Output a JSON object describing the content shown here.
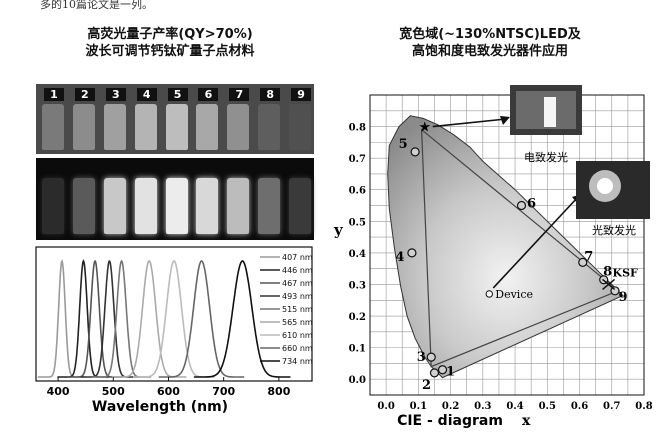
{
  "header_partial": "多的10篇论文是一列。",
  "left": {
    "title_line1": "高荧光量子产率(QY>70%)",
    "title_line2": "波长可调节钙钛矿量子点材料",
    "vials": [
      {
        "label": "1",
        "day": "#7a7a7a",
        "uv": "#2b2b2b"
      },
      {
        "label": "2",
        "day": "#8c8c8c",
        "uv": "#5a5a5a"
      },
      {
        "label": "3",
        "day": "#a0a0a0",
        "uv": "#c8c8c8"
      },
      {
        "label": "4",
        "day": "#b4b4b4",
        "uv": "#e2e2e2"
      },
      {
        "label": "5",
        "day": "#bdbdbd",
        "uv": "#ececec"
      },
      {
        "label": "6",
        "day": "#a8a8a8",
        "uv": "#d8d8d8"
      },
      {
        "label": "7",
        "day": "#909090",
        "uv": "#bcbcbc"
      },
      {
        "label": "8",
        "day": "#5e5e5e",
        "uv": "#6e6e6e"
      },
      {
        "label": "9",
        "day": "#505050",
        "uv": "#3a3a3a"
      }
    ]
  },
  "chart_data": [
    {
      "type": "line",
      "xlabel": "Wavelength (nm)",
      "xlim": [
        360,
        860
      ],
      "xticks": [
        400,
        500,
        600,
        700,
        800
      ],
      "series": [
        {
          "name": "407 nm",
          "peak": 407,
          "fwhm": 14,
          "color": "#9a9a9a"
        },
        {
          "name": "446 nm",
          "peak": 446,
          "fwhm": 16,
          "color": "#222222"
        },
        {
          "name": "467 nm",
          "peak": 467,
          "fwhm": 18,
          "color": "#555555"
        },
        {
          "name": "493 nm",
          "peak": 493,
          "fwhm": 19,
          "color": "#333333"
        },
        {
          "name": "515 nm",
          "peak": 515,
          "fwhm": 20,
          "color": "#777777"
        },
        {
          "name": "565 nm",
          "peak": 565,
          "fwhm": 28,
          "color": "#aaaaaa"
        },
        {
          "name": "610 nm",
          "peak": 610,
          "fwhm": 32,
          "color": "#bbbbbb"
        },
        {
          "name": "660 nm",
          "peak": 660,
          "fwhm": 34,
          "color": "#666666"
        },
        {
          "name": "734 nm",
          "peak": 734,
          "fwhm": 40,
          "color": "#111111"
        }
      ]
    },
    {
      "type": "scatter",
      "xlabel": "x",
      "ylabel": "y",
      "xcaption": "CIE - diagram",
      "xlim": [
        -0.05,
        0.8
      ],
      "ylim": [
        -0.05,
        0.9
      ],
      "xticks": [
        "0.0",
        "0.1",
        "0.2",
        "0.3",
        "0.4",
        "0.5",
        "0.6",
        "0.7",
        "0.8"
      ],
      "yticks": [
        "0.0",
        "0.1",
        "0.2",
        "0.3",
        "0.4",
        "0.5",
        "0.6",
        "0.7",
        "0.8"
      ],
      "locus": [
        [
          0.175,
          0.005
        ],
        [
          0.17,
          0.01
        ],
        [
          0.16,
          0.02
        ],
        [
          0.14,
          0.04
        ],
        [
          0.12,
          0.07
        ],
        [
          0.09,
          0.13
        ],
        [
          0.065,
          0.2
        ],
        [
          0.045,
          0.295
        ],
        [
          0.025,
          0.42
        ],
        [
          0.01,
          0.54
        ],
        [
          0.005,
          0.65
        ],
        [
          0.01,
          0.74
        ],
        [
          0.04,
          0.8
        ],
        [
          0.075,
          0.834
        ],
        [
          0.115,
          0.826
        ],
        [
          0.16,
          0.806
        ],
        [
          0.21,
          0.774
        ],
        [
          0.26,
          0.735
        ],
        [
          0.3,
          0.69
        ],
        [
          0.35,
          0.645
        ],
        [
          0.4,
          0.6
        ],
        [
          0.45,
          0.55
        ],
        [
          0.5,
          0.5
        ],
        [
          0.55,
          0.45
        ],
        [
          0.6,
          0.4
        ],
        [
          0.65,
          0.35
        ],
        [
          0.7,
          0.3
        ],
        [
          0.735,
          0.265
        ]
      ],
      "triangle": [
        [
          0.11,
          0.79
        ],
        [
          0.72,
          0.28
        ],
        [
          0.14,
          0.04
        ]
      ],
      "points": [
        {
          "label": "1",
          "x": 0.175,
          "y": 0.03
        },
        {
          "label": "2",
          "x": 0.15,
          "y": 0.02
        },
        {
          "label": "3",
          "x": 0.14,
          "y": 0.07
        },
        {
          "label": "4",
          "x": 0.08,
          "y": 0.4
        },
        {
          "label": "5",
          "x": 0.09,
          "y": 0.72
        },
        {
          "label": "6",
          "x": 0.42,
          "y": 0.55
        },
        {
          "label": "7",
          "x": 0.61,
          "y": 0.37
        },
        {
          "label": "8",
          "x": 0.675,
          "y": 0.315
        },
        {
          "label": "9",
          "x": 0.71,
          "y": 0.28
        }
      ],
      "device": {
        "label": "Device",
        "x": 0.32,
        "y": 0.27
      },
      "ksf": {
        "label": "KSF",
        "x": 0.69,
        "y": 0.3
      },
      "star": {
        "x": 0.12,
        "y": 0.8
      }
    }
  ],
  "right": {
    "title_line1": "宽色域(~130%NTSC)LED及",
    "title_line2": "高饱和度电致发光器件应用",
    "caption_el": "电致发光",
    "caption_pl": "光致发光"
  }
}
